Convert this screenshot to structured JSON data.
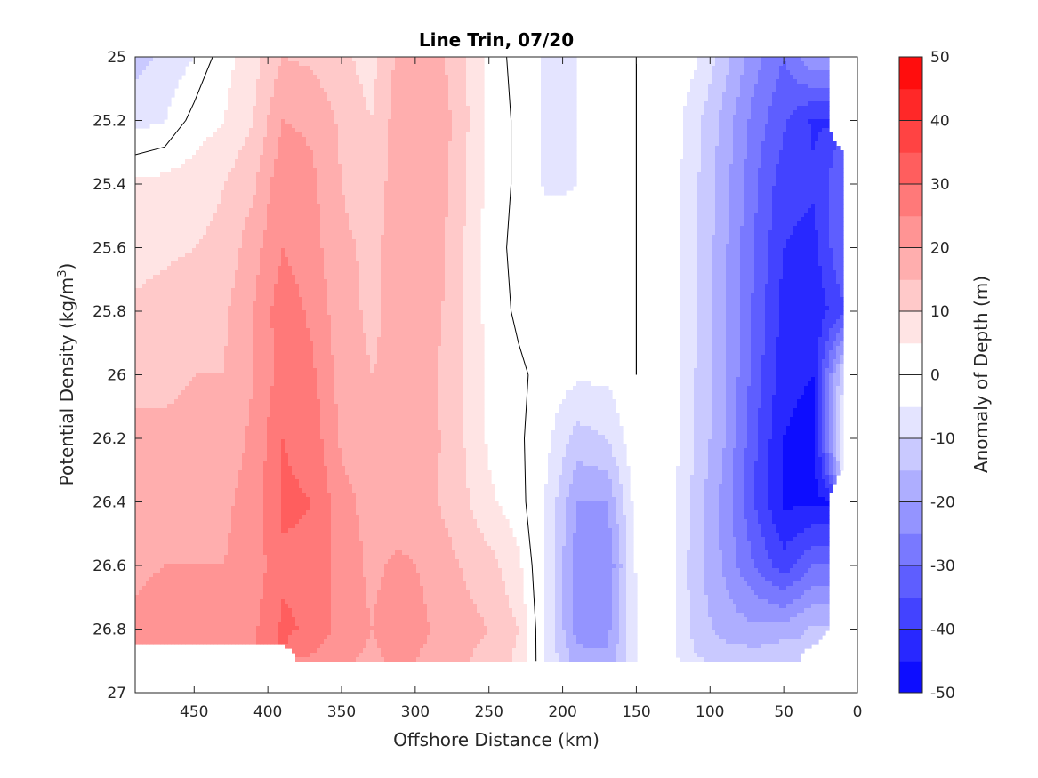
{
  "chart_data": {
    "type": "heatmap",
    "subtype": "filled-contour",
    "title": "Line Trin, 07/20",
    "xlabel": "Offshore Distance (km)",
    "ylabel_main": "Potential Density (kg/m",
    "ylabel_sup": "3",
    "ylabel_close": ")",
    "colorbar_label": "Anomaly of Depth (m)",
    "x_reversed": true,
    "xlim": [
      490,
      0
    ],
    "ylim": [
      25,
      27
    ],
    "y_reversed": true,
    "clim": [
      -50,
      50
    ],
    "contour_step": 5,
    "x_ticks": [
      "450",
      "400",
      "350",
      "300",
      "250",
      "200",
      "150",
      "100",
      "50",
      "0"
    ],
    "x_tick_values": [
      450,
      400,
      350,
      300,
      250,
      200,
      150,
      100,
      50,
      0
    ],
    "y_ticks": [
      "25",
      "25.2",
      "25.4",
      "25.6",
      "25.8",
      "26",
      "26.2",
      "26.4",
      "26.6",
      "26.8",
      "27"
    ],
    "y_tick_values": [
      25,
      25.2,
      25.4,
      25.6,
      25.8,
      26,
      26.2,
      26.4,
      26.6,
      26.8,
      27
    ],
    "colorbar_ticks": [
      "50",
      "40",
      "30",
      "20",
      "10",
      "0",
      "-10",
      "-20",
      "-30",
      "-40",
      "-50"
    ],
    "colorbar_tick_values": [
      50,
      40,
      30,
      20,
      10,
      0,
      -10,
      -20,
      -30,
      -40,
      -50
    ],
    "x": [
      490,
      470,
      450,
      430,
      410,
      390,
      370,
      350,
      330,
      310,
      290,
      270,
      250,
      230,
      210,
      190,
      170,
      150,
      130,
      110,
      90,
      70,
      50,
      30,
      10
    ],
    "y": [
      25.0,
      25.2,
      25.4,
      25.6,
      25.8,
      26.0,
      26.2,
      26.4,
      26.6,
      26.8,
      26.9
    ],
    "z": [
      [
        -12,
        -9,
        -5,
        3,
        8,
        15,
        14,
        11,
        8,
        17,
        18,
        12,
        3,
        -2,
        -6,
        -5,
        -3,
        0,
        -1,
        -4,
        -13,
        -23,
        -30,
        -20,
        null
      ],
      [
        -7,
        -5,
        2,
        5,
        10,
        20,
        19,
        14,
        10,
        18,
        20,
        13,
        3,
        -1,
        -6,
        -5,
        -3,
        0,
        -1,
        -8,
        -17,
        -27,
        -34,
        -41,
        null
      ],
      [
        6,
        7,
        8,
        10,
        14,
        24,
        21,
        15,
        12,
        18,
        20,
        12,
        3,
        -1,
        -6,
        -5,
        -3,
        0,
        -1,
        -9,
        -18,
        -29,
        -38,
        -39,
        -31
      ],
      [
        8,
        9,
        10,
        11,
        18,
        25,
        22,
        16,
        14,
        17,
        19,
        11,
        3,
        -2,
        -1,
        -3,
        -2,
        0,
        -1,
        -9,
        -19,
        -30,
        -40,
        -42,
        -30
      ],
      [
        11,
        12,
        13,
        14,
        20,
        28,
        24,
        17,
        14,
        17,
        18,
        11,
        3,
        -1,
        -1,
        -2,
        -2,
        0,
        -1,
        -9,
        -19,
        -31,
        -42,
        -44,
        -36
      ],
      [
        14,
        14,
        15,
        15,
        20,
        27,
        26,
        18,
        15,
        16,
        16,
        11,
        4,
        1,
        -2,
        -4,
        -4,
        0,
        -1,
        -10,
        -19,
        -32,
        -43,
        -45,
        -10
      ],
      [
        16,
        16,
        16,
        17,
        21,
        30,
        28,
        19,
        16,
        16,
        17,
        11,
        4,
        1,
        -4,
        -12,
        -10,
        -1,
        -1,
        -10,
        -20,
        -34,
        -45,
        -48,
        -5
      ],
      [
        18,
        18,
        18,
        19,
        22,
        31,
        30,
        22,
        18,
        17,
        16,
        12,
        6,
        2,
        -6,
        -20,
        -20,
        -2,
        -1,
        -12,
        -22,
        -35,
        -46,
        -46,
        null
      ],
      [
        19,
        20,
        20,
        20,
        22,
        29,
        29,
        23,
        19,
        21,
        19,
        15,
        12,
        6,
        -7,
        -23,
        -25,
        -4,
        -1,
        -13,
        -21,
        -30,
        -38,
        -30,
        null
      ],
      [
        21,
        23,
        21,
        20,
        24,
        31,
        29,
        23,
        20,
        23,
        20,
        17,
        15,
        10,
        -7,
        -22,
        -22,
        -5,
        -2,
        -12,
        -17,
        -19,
        -18,
        -14,
        null
      ],
      [
        null,
        null,
        null,
        null,
        null,
        null,
        24,
        21,
        19,
        21,
        19,
        16,
        13,
        9,
        -6,
        -18,
        -19,
        -5,
        -2,
        -9,
        -12,
        -12,
        -10,
        null,
        null
      ]
    ],
    "colormap": "blue-white-red",
    "grid": false,
    "legend": "none"
  }
}
